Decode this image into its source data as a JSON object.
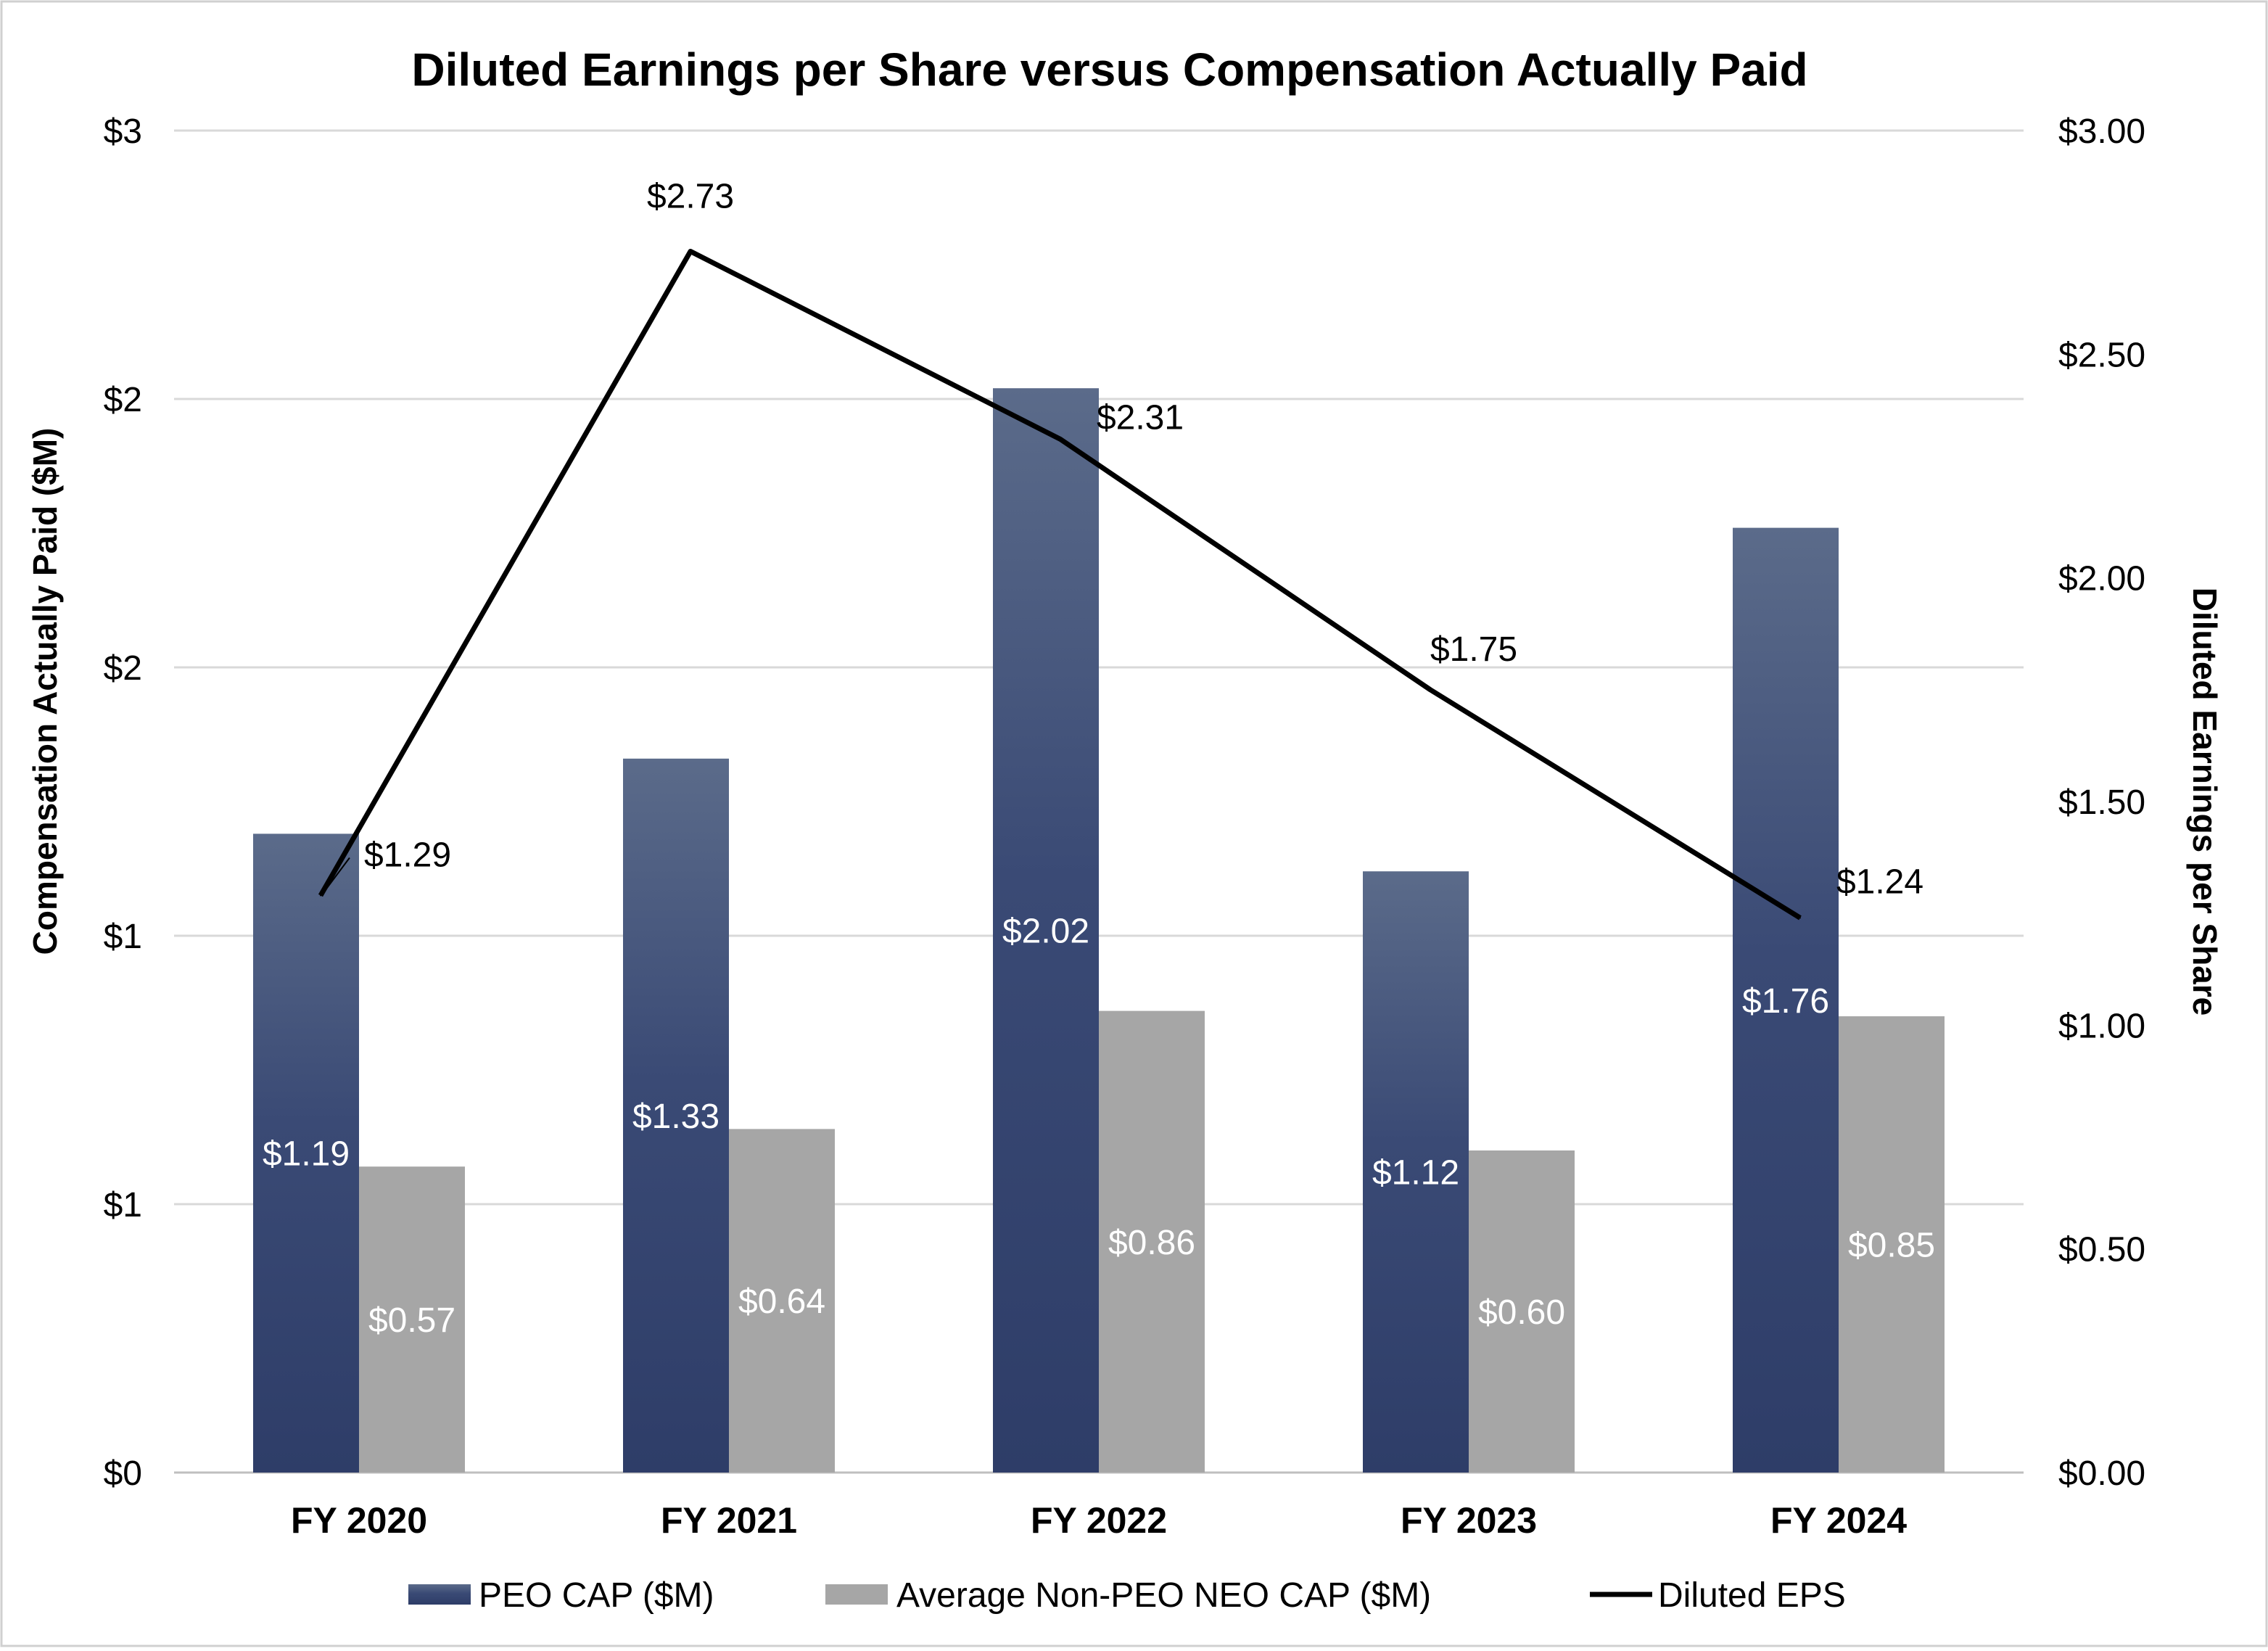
{
  "chart_data": {
    "type": "bar",
    "title": "Diluted Earnings per Share versus Compensation Actually Paid",
    "categories": [
      "FY 2020",
      "FY 2021",
      "FY 2022",
      "FY 2023",
      "FY 2024"
    ],
    "series": [
      {
        "name": "PEO CAP ($M)",
        "kind": "bar",
        "axis": "left",
        "color_top": "#5b6b8a",
        "color_bottom": "#2e3d68",
        "values": [
          1.19,
          1.33,
          2.02,
          1.12,
          1.76
        ],
        "labels": [
          "$1.19",
          "$1.33",
          "$2.02",
          "$1.12",
          "$1.76"
        ]
      },
      {
        "name": "Average Non-PEO NEO CAP ($M)",
        "kind": "bar",
        "axis": "left",
        "color": "#a6a6a6",
        "values": [
          0.57,
          0.64,
          0.86,
          0.6,
          0.85
        ],
        "labels": [
          "$0.57",
          "$0.64",
          "$0.86",
          "$0.60",
          "$0.85"
        ]
      },
      {
        "name": "Diluted EPS",
        "kind": "line",
        "axis": "right",
        "color": "#000000",
        "values": [
          1.29,
          2.73,
          2.31,
          1.75,
          1.24
        ],
        "labels": [
          "$1.29",
          "$2.73",
          "$2.31",
          "$1.75",
          "$1.24"
        ]
      }
    ],
    "y_left": {
      "label": "Compensation Actually Paid ($M)",
      "range": [
        0,
        2.5
      ],
      "ticks": [
        0,
        0.5,
        1,
        1.5,
        2,
        2.5
      ],
      "tick_labels": [
        "$0",
        "$1",
        "$1",
        "$2",
        "$2",
        "$3"
      ]
    },
    "y_right": {
      "label": "Diluted Earnings per Share",
      "range": [
        0,
        3
      ],
      "ticks": [
        0,
        0.5,
        1,
        1.5,
        2,
        2.5,
        3
      ],
      "tick_labels": [
        "$0.00",
        "$0.50",
        "$1.00",
        "$1.50",
        "$2.00",
        "$2.50",
        "$3.00"
      ]
    },
    "grid": true,
    "legend_position": "bottom"
  }
}
